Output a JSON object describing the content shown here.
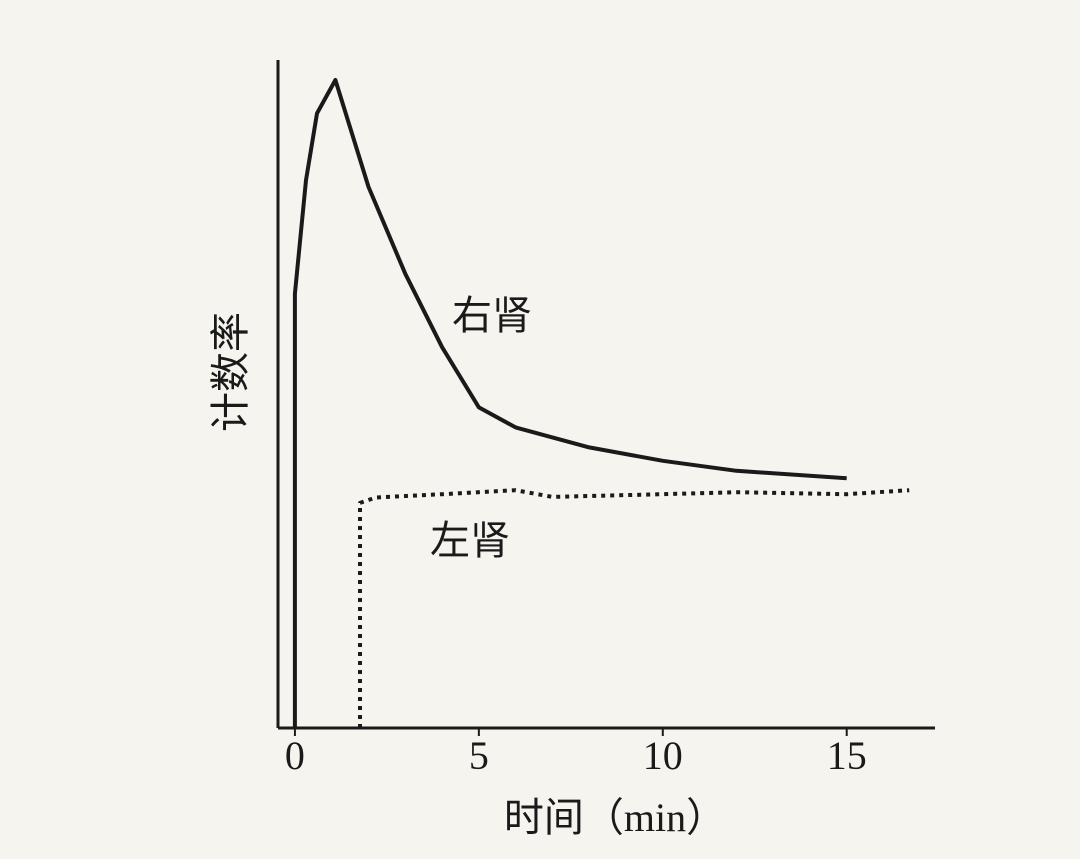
{
  "chart_data": {
    "type": "line",
    "x_label": "时间（min）",
    "y_label": "计数率",
    "xlim": [
      -0.46,
      17.4
    ],
    "ylim": [
      0,
      100
    ],
    "xticks": [
      0,
      5,
      10,
      15
    ],
    "series": [
      {
        "name": "右肾",
        "color": "#1a1a1a",
        "style": "solid",
        "x": [
          0,
          0,
          0.3,
          0.6,
          1.1,
          2,
          3,
          4,
          5,
          6,
          8,
          10,
          12,
          15
        ],
        "values": [
          0,
          65,
          82,
          92,
          97,
          81,
          68,
          57,
          48,
          45,
          42,
          40,
          38.5,
          37.4
        ]
      },
      {
        "name": "左肾",
        "color": "#1a1a1a",
        "style": "dotted",
        "x": [
          1.77,
          1.77,
          2.2,
          4,
          6,
          7,
          10,
          12,
          15,
          16.7
        ],
        "values": [
          0,
          33.7,
          34.5,
          35,
          35.6,
          34.6,
          35,
          35.3,
          35,
          35.6
        ]
      }
    ]
  }
}
